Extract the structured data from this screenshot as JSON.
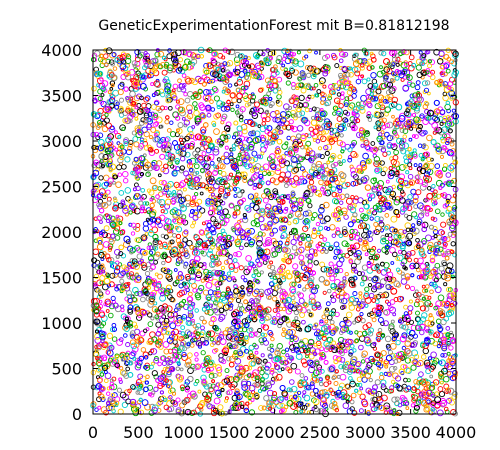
{
  "chart_data": {
    "type": "scatter",
    "title": "GeneticExperimentationForest mit B=0.81812198",
    "xlabel": "",
    "ylabel": "",
    "xlim": [
      0,
      4000
    ],
    "ylim": [
      0,
      4000
    ],
    "x_ticks": [
      0,
      500,
      1000,
      1500,
      2000,
      2500,
      3000,
      3500,
      4000
    ],
    "y_ticks": [
      0,
      500,
      1000,
      1500,
      2000,
      2500,
      3000,
      3500,
      4000
    ],
    "x_tick_labels": [
      "0",
      "500",
      "1000",
      "1500",
      "2000",
      "2500",
      "3000",
      "3500",
      "4000"
    ],
    "y_tick_labels": [
      "0",
      "500",
      "1000",
      "1500",
      "2000",
      "2500",
      "3000",
      "3500",
      "4000"
    ],
    "grid": false,
    "legend": "none",
    "marker": "open-circle",
    "series_colors": [
      "#000000",
      "#ff0000",
      "#00aa00",
      "#0000ff",
      "#ff00ff",
      "#00cccc",
      "#ffcc00",
      "#ff8800",
      "#8800ff",
      "#888888"
    ]
  }
}
